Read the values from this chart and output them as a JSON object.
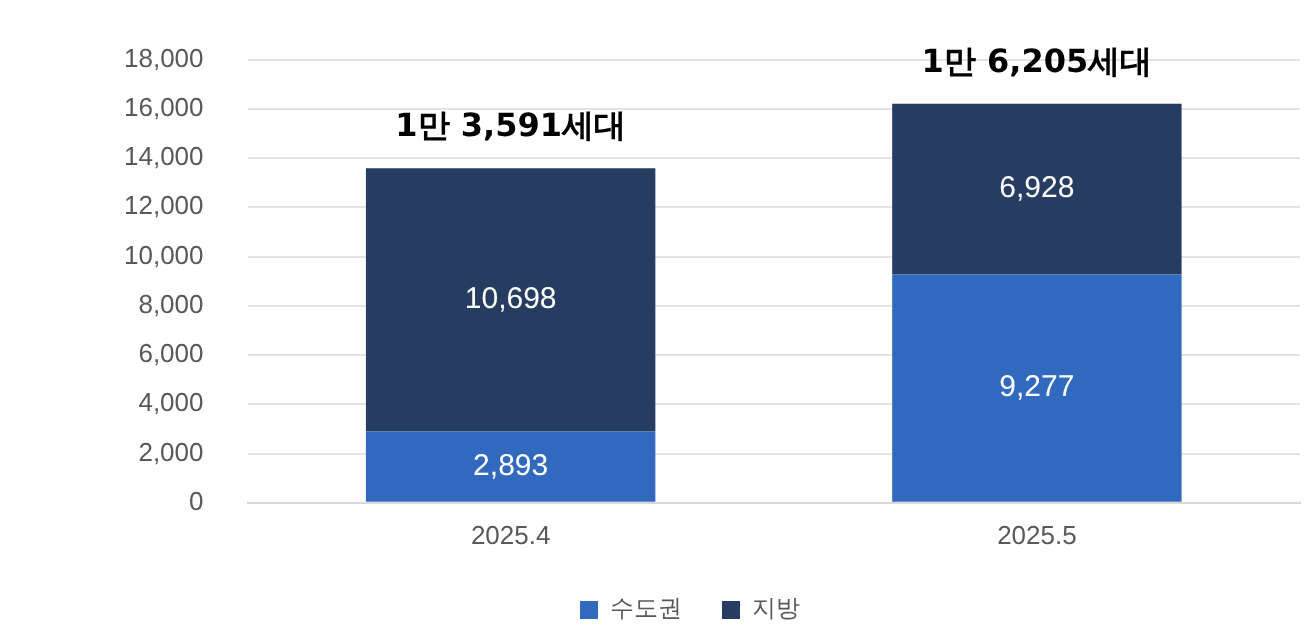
{
  "chart_data": {
    "type": "bar",
    "stacked": true,
    "categories": [
      "2025.4",
      "2025.5"
    ],
    "series": [
      {
        "name": "수도권",
        "color": "#3169bf",
        "values": [
          2893,
          9277
        ],
        "value_labels": [
          "2,893",
          "9,277"
        ]
      },
      {
        "name": "지방",
        "color": "#263c61",
        "values": [
          10698,
          6928
        ],
        "value_labels": [
          "10,698",
          "6,928"
        ]
      }
    ],
    "ylim": [
      0,
      18000
    ],
    "yticks": [
      0,
      {
        "value": 2000,
        "label": "2,000"
      },
      {
        "value": 4000,
        "label": "4,000"
      },
      {
        "value": 6000,
        "label": "6,000"
      },
      {
        "value": 8000,
        "label": "8,000"
      },
      {
        "value": 10000,
        "label": "10,000"
      },
      {
        "value": 12000,
        "label": "12,000"
      },
      {
        "value": 14000,
        "label": "14,000"
      },
      {
        "value": 16000,
        "label": "16,000"
      },
      {
        "value": 18000,
        "label": "18,000"
      }
    ],
    "grid": "y",
    "legend": "bottom",
    "totals": [
      "1만 3,591세대",
      "1만 6,205세대"
    ]
  }
}
